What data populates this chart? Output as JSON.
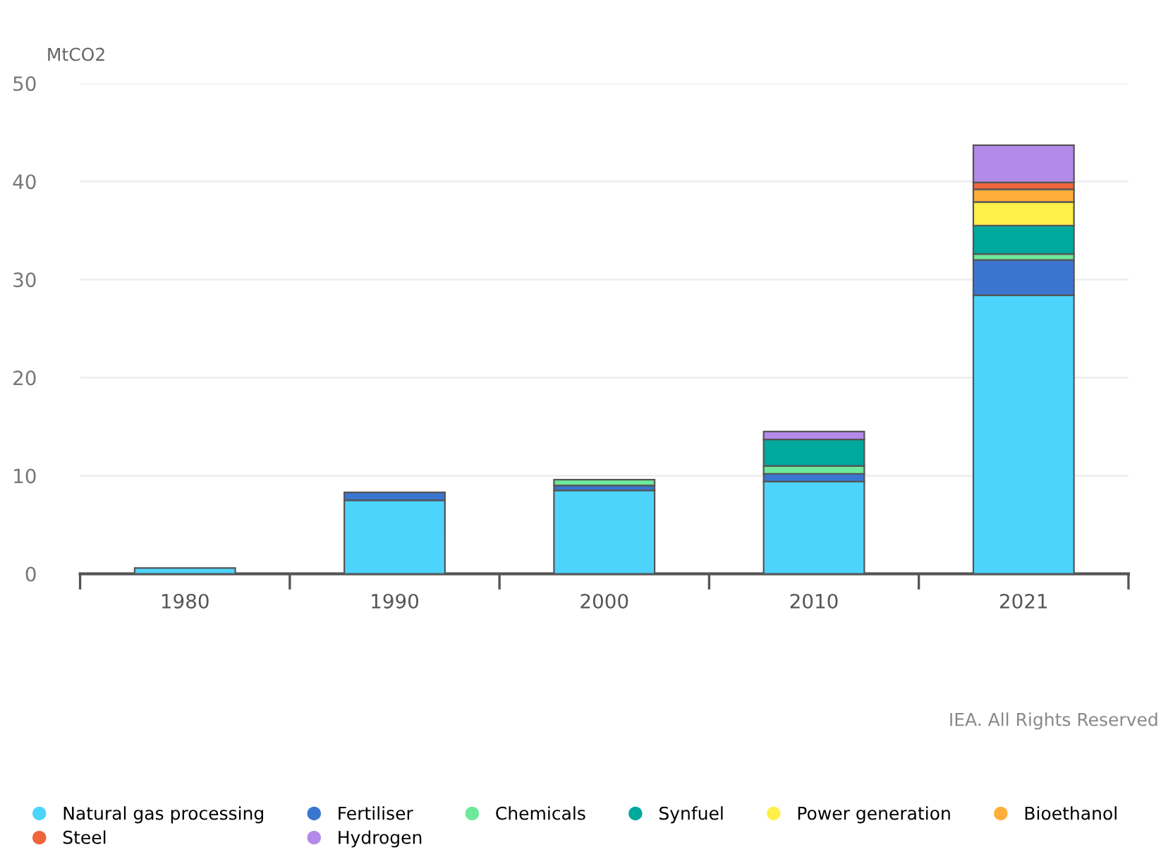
{
  "chart_data": {
    "type": "bar",
    "stacked": true,
    "ylabel": "MtCO2",
    "categories": [
      "1980",
      "1990",
      "2000",
      "2010",
      "2021"
    ],
    "series": [
      {
        "name": "Natural gas processing",
        "color": "#4dd4fc",
        "values": [
          0.6,
          7.5,
          8.5,
          9.4,
          28.4
        ]
      },
      {
        "name": "Fertiliser",
        "color": "#3a76d0",
        "values": [
          null,
          0.8,
          0.5,
          0.8,
          3.6
        ]
      },
      {
        "name": "Chemicals",
        "color": "#6ee89a",
        "values": [
          null,
          null,
          0.6,
          0.8,
          0.6
        ]
      },
      {
        "name": "Synfuel",
        "color": "#00a99d",
        "values": [
          null,
          null,
          null,
          2.7,
          2.9
        ]
      },
      {
        "name": "Power generation",
        "color": "#fff04a",
        "values": [
          null,
          null,
          null,
          null,
          2.4
        ]
      },
      {
        "name": "Bioethanol",
        "color": "#ffae3b",
        "values": [
          null,
          null,
          null,
          null,
          1.3
        ]
      },
      {
        "name": "Steel",
        "color": "#f0643c",
        "values": [
          null,
          null,
          null,
          null,
          0.7
        ]
      },
      {
        "name": "Hydrogen",
        "color": "#b38ae8",
        "values": [
          null,
          null,
          null,
          0.8,
          3.8
        ]
      }
    ],
    "ylim": [
      0,
      50
    ],
    "yticks": [
      0,
      10,
      20,
      30,
      40,
      50
    ],
    "grid": "y",
    "legend": "bottom",
    "annotations": [
      "IEA. All Rights Reserved"
    ]
  }
}
